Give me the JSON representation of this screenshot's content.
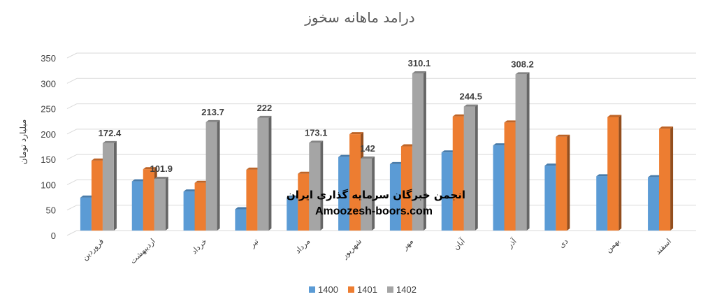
{
  "chart_data": {
    "type": "bar",
    "title": "درامد ماهانه سخوز",
    "ylabel": "میلیارد تومان",
    "xlabel": "",
    "ylim": [
      0,
      350
    ],
    "yticks": [
      0,
      50,
      100,
      150,
      200,
      250,
      300,
      350
    ],
    "grid": true,
    "legend_position": "bottom",
    "categories": [
      "فروردین",
      "اردیبهشت",
      "خرداد",
      "تیر",
      "مرداد",
      "شهریور",
      "مهر",
      "آبان",
      "آذر",
      "دی",
      "بهمن",
      "اسفند"
    ],
    "series": [
      {
        "name": "1400",
        "color": "#5b9bd5",
        "values": [
          65,
          97,
          77,
          42,
          65,
          145,
          131,
          154,
          168,
          128,
          107,
          105
        ]
      },
      {
        "name": "1401",
        "color": "#ed7d31",
        "values": [
          138,
          121,
          94,
          120,
          112,
          190,
          166,
          225,
          213,
          185,
          224,
          201
        ]
      },
      {
        "name": "1402",
        "color": "#a5a5a5",
        "values": [
          172.4,
          101.9,
          213.7,
          222,
          173.1,
          142,
          310.1,
          244.5,
          308.2,
          null,
          null,
          null
        ]
      }
    ],
    "data_labels": [
      "172.4",
      "101.9",
      "213.7",
      "222",
      "173.1",
      "142",
      "310.1",
      "244.5",
      "308.2"
    ]
  },
  "watermark": {
    "line1": "انجمن خبرگان سرمایه گذاری ایران",
    "line2": "Amoozesh-boors.com"
  }
}
